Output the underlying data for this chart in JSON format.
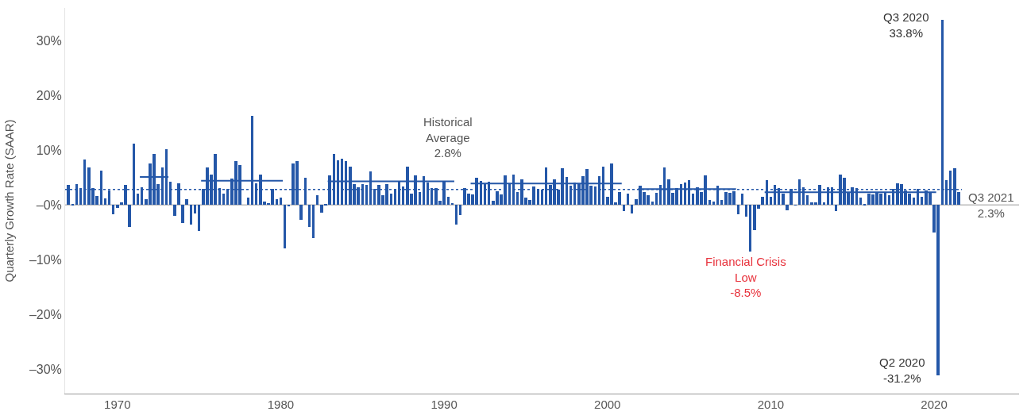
{
  "chart_data": {
    "type": "bar",
    "ylabel": "Quarterly Growth Rate (SAAR)",
    "x": [
      1967.0,
      1967.25,
      1967.5,
      1967.75,
      1968.0,
      1968.25,
      1968.5,
      1968.75,
      1969.0,
      1969.25,
      1969.5,
      1969.75,
      1970.0,
      1970.25,
      1970.5,
      1970.75,
      1971.0,
      1971.25,
      1971.5,
      1971.75,
      1972.0,
      1972.25,
      1972.5,
      1972.75,
      1973.0,
      1973.25,
      1973.5,
      1973.75,
      1974.0,
      1974.25,
      1974.5,
      1974.75,
      1975.0,
      1975.25,
      1975.5,
      1975.75,
      1976.0,
      1976.25,
      1976.5,
      1976.75,
      1977.0,
      1977.25,
      1977.5,
      1977.75,
      1978.0,
      1978.25,
      1978.5,
      1978.75,
      1979.0,
      1979.25,
      1979.5,
      1979.75,
      1980.0,
      1980.25,
      1980.5,
      1980.75,
      1981.0,
      1981.25,
      1981.5,
      1981.75,
      1982.0,
      1982.25,
      1982.5,
      1982.75,
      1983.0,
      1983.25,
      1983.5,
      1983.75,
      1984.0,
      1984.25,
      1984.5,
      1984.75,
      1985.0,
      1985.25,
      1985.5,
      1985.75,
      1986.0,
      1986.25,
      1986.5,
      1986.75,
      1987.0,
      1987.25,
      1987.5,
      1987.75,
      1988.0,
      1988.25,
      1988.5,
      1988.75,
      1989.0,
      1989.25,
      1989.5,
      1989.75,
      1990.0,
      1990.25,
      1990.5,
      1990.75,
      1991.0,
      1991.25,
      1991.5,
      1991.75,
      1992.0,
      1992.25,
      1992.5,
      1992.75,
      1993.0,
      1993.25,
      1993.5,
      1993.75,
      1994.0,
      1994.25,
      1994.5,
      1994.75,
      1995.0,
      1995.25,
      1995.5,
      1995.75,
      1996.0,
      1996.25,
      1996.5,
      1996.75,
      1997.0,
      1997.25,
      1997.5,
      1997.75,
      1998.0,
      1998.25,
      1998.5,
      1998.75,
      1999.0,
      1999.25,
      1999.5,
      1999.75,
      2000.0,
      2000.25,
      2000.5,
      2000.75,
      2001.0,
      2001.25,
      2001.5,
      2001.75,
      2002.0,
      2002.25,
      2002.5,
      2002.75,
      2003.0,
      2003.25,
      2003.5,
      2003.75,
      2004.0,
      2004.25,
      2004.5,
      2004.75,
      2005.0,
      2005.25,
      2005.5,
      2005.75,
      2006.0,
      2006.25,
      2006.5,
      2006.75,
      2007.0,
      2007.25,
      2007.5,
      2007.75,
      2008.0,
      2008.25,
      2008.5,
      2008.75,
      2009.0,
      2009.25,
      2009.5,
      2009.75,
      2010.0,
      2010.25,
      2010.5,
      2010.75,
      2011.0,
      2011.25,
      2011.5,
      2011.75,
      2012.0,
      2012.25,
      2012.5,
      2012.75,
      2013.0,
      2013.25,
      2013.5,
      2013.75,
      2014.0,
      2014.25,
      2014.5,
      2014.75,
      2015.0,
      2015.25,
      2015.5,
      2015.75,
      2016.0,
      2016.25,
      2016.5,
      2016.75,
      2017.0,
      2017.25,
      2017.5,
      2017.75,
      2018.0,
      2018.25,
      2018.5,
      2018.75,
      2019.0,
      2019.25,
      2019.5,
      2019.75,
      2020.0,
      2020.25,
      2020.5,
      2020.75,
      2021.0,
      2021.25,
      2021.5
    ],
    "series": [
      {
        "color": "#2457a8",
        "values": [
          3.6,
          0.2,
          3.8,
          3.1,
          8.3,
          6.8,
          3.1,
          1.6,
          6.3,
          1.2,
          2.6,
          -1.7,
          -0.6,
          0.5,
          3.7,
          -4.0,
          11.2,
          2.1,
          3.2,
          1.0,
          7.5,
          9.3,
          3.8,
          6.8,
          10.2,
          4.3,
          -2.0,
          3.9,
          -3.3,
          1.0,
          -3.6,
          -1.5,
          -4.7,
          2.9,
          6.9,
          5.5,
          9.3,
          3.1,
          2.1,
          2.9,
          4.8,
          8.0,
          7.3,
          0.0,
          1.3,
          16.3,
          4.0,
          5.5,
          0.6,
          0.3,
          2.9,
          1.0,
          1.3,
          -7.9,
          -0.3,
          7.6,
          8.0,
          -2.7,
          4.9,
          -4.1,
          -6.0,
          1.8,
          -1.4,
          0.1,
          5.4,
          9.3,
          8.1,
          8.5,
          8.0,
          7.0,
          3.8,
          3.2,
          3.8,
          3.6,
          6.1,
          2.9,
          3.7,
          1.8,
          3.8,
          2.1,
          2.9,
          4.2,
          3.4,
          7.0,
          2.1,
          5.4,
          2.4,
          5.3,
          4.1,
          3.1,
          3.0,
          0.8,
          4.4,
          1.5,
          0.3,
          -3.6,
          -1.9,
          3.1,
          2.0,
          1.9,
          4.9,
          4.4,
          4.0,
          4.2,
          0.7,
          2.5,
          1.9,
          5.4,
          3.9,
          5.5,
          2.4,
          4.7,
          1.4,
          0.9,
          3.3,
          2.8,
          2.8,
          6.9,
          3.7,
          4.6,
          2.8,
          6.7,
          5.1,
          3.5,
          4.1,
          3.8,
          5.2,
          6.6,
          3.5,
          3.4,
          5.2,
          7.0,
          1.5,
          7.5,
          0.4,
          2.3,
          -1.1,
          2.1,
          -1.6,
          1.1,
          3.5,
          2.4,
          1.8,
          0.6,
          2.2,
          3.6,
          6.8,
          4.6,
          2.2,
          3.1,
          3.8,
          4.1,
          4.5,
          2.0,
          3.2,
          2.3,
          5.4,
          0.9,
          0.6,
          3.5,
          0.9,
          2.3,
          2.2,
          2.5,
          -1.7,
          2.1,
          -2.1,
          -8.5,
          -4.6,
          -0.7,
          1.5,
          4.5,
          1.5,
          3.7,
          3.0,
          2.0,
          -1.0,
          2.9,
          -0.1,
          4.7,
          3.2,
          1.7,
          0.5,
          0.5,
          3.6,
          0.5,
          3.2,
          3.2,
          -1.1,
          5.5,
          5.0,
          2.3,
          3.2,
          3.0,
          1.3,
          0.1,
          2.0,
          1.9,
          2.2,
          2.0,
          2.3,
          1.7,
          2.9,
          3.9,
          3.8,
          2.7,
          2.1,
          1.3,
          2.9,
          1.5,
          2.6,
          2.4,
          -5.1,
          -31.2,
          33.8,
          4.5,
          6.3,
          6.7,
          2.3
        ]
      },
      {
        "type": "line",
        "color": "#2457a8",
        "x": [
          1971.375,
          1973.125
        ],
        "values": [
          5.1,
          5.1
        ]
      },
      {
        "type": "line",
        "color": "#2457a8",
        "x": [
          1975.125,
          1980.125
        ],
        "values": [
          4.4,
          4.4
        ]
      },
      {
        "type": "line",
        "color": "#2457a8",
        "x": [
          1982.875,
          1990.625
        ],
        "values": [
          4.3,
          4.3
        ]
      },
      {
        "type": "line",
        "color": "#2457a8",
        "x": [
          1991.625,
          2000.875
        ],
        "values": [
          3.9,
          3.9
        ]
      },
      {
        "type": "line",
        "color": "#2457a8",
        "x": [
          2001.875,
          2007.875
        ],
        "values": [
          2.9,
          2.9
        ]
      },
      {
        "type": "line",
        "color": "#2457a8",
        "x": [
          2009.625,
          2020.125
        ],
        "values": [
          2.3,
          2.3
        ]
      }
    ],
    "ref_lines": [
      {
        "axis": "y",
        "value": 2.8,
        "color": "#2457a8",
        "line_style": "dotted"
      },
      {
        "axis": "y",
        "value": 0,
        "color": "#bbbbbb",
        "line_style": "solid"
      }
    ],
    "annotations": [
      {
        "text": "Historical\nAverage\n2.8%",
        "x": 1990.25,
        "y": 2.8
      },
      {
        "text": "Q3 2020\n33.8%",
        "x": 2020.5,
        "y": 33.8
      },
      {
        "text": "Q2 2020\n-31.2%",
        "x": 2020.25,
        "y": -31.2
      },
      {
        "text": "Q3 2021\n2.3%",
        "x": 2021.5,
        "y": 2.3
      },
      {
        "text": "Financial Crisis\nLow\n-8.5%",
        "x": 2008.75,
        "y": -8.5
      }
    ],
    "xlim": [
      1966.8,
      2025.2
    ],
    "xticks": [
      1970,
      1980,
      1990,
      2000,
      2010,
      2020
    ],
    "ylim": [
      -34.5,
      36
    ],
    "yticks": [
      {
        "value": 30,
        "label": "30%"
      },
      {
        "value": 20,
        "label": "20%"
      },
      {
        "value": 10,
        "label": "10%"
      },
      {
        "value": 0,
        "label": "–0%"
      },
      {
        "value": -10,
        "label": "–10%"
      },
      {
        "value": -20,
        "label": "–20%"
      },
      {
        "value": -30,
        "label": "–30%"
      }
    ],
    "grid": false
  }
}
